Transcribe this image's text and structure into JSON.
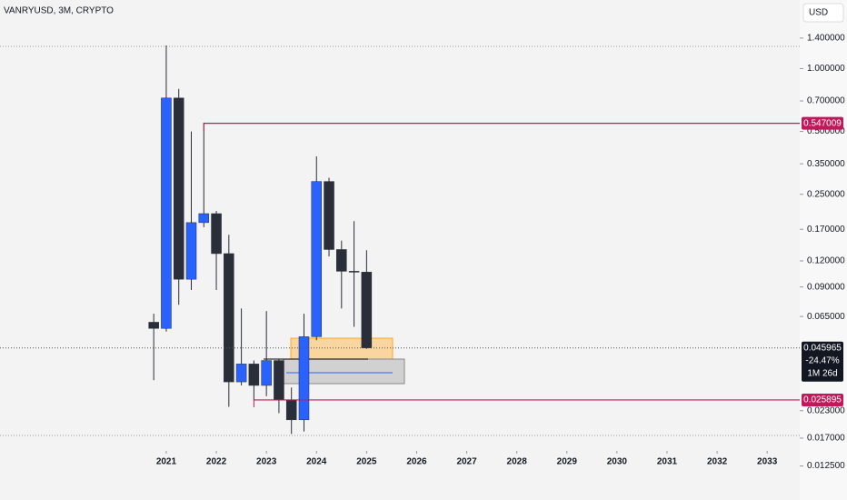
{
  "chart_data": {
    "type": "candlestick",
    "title": "VANRYUSD, 3M, CRYPTO",
    "currency": "USD",
    "log_scale": true,
    "x": [
      2020.75,
      2021,
      2021.25,
      2021.5,
      2021.75,
      2022,
      2022.25,
      2022.5,
      2022.75,
      2023,
      2023.25,
      2023.5,
      2023.75,
      2024,
      2024.25,
      2024.5,
      2024.75,
      2025
    ],
    "open": [
      0.061,
      0.057,
      0.723,
      0.098,
      0.183,
      0.202,
      0.13,
      0.0316,
      0.0385,
      0.0304,
      0.04,
      0.0259,
      0.0208,
      0.052,
      0.288,
      0.136,
      0.107,
      0.106
    ],
    "high": [
      0.067,
      1.29,
      0.8,
      0.5,
      0.551,
      0.208,
      0.16,
      0.071,
      0.04,
      0.069,
      0.0405,
      0.0297,
      0.067,
      0.38,
      0.3,
      0.15,
      0.186,
      0.135
    ],
    "low": [
      0.0322,
      0.055,
      0.074,
      0.087,
      0.174,
      0.087,
      0.024,
      0.0304,
      0.0259,
      0.027,
      0.0224,
      0.0178,
      0.0183,
      0.05,
      0.126,
      0.071,
      0.058,
      0.0455
    ],
    "close": [
      0.057,
      0.723,
      0.098,
      0.183,
      0.202,
      0.13,
      0.0316,
      0.0385,
      0.0304,
      0.04,
      0.0259,
      0.0208,
      0.052,
      0.288,
      0.136,
      0.107,
      0.106,
      0.045965
    ],
    "up_color": "#2962ff",
    "down_color": "#2a2e39",
    "xlim": [
      2017.68,
      2033.65
    ],
    "xticks": [
      2021,
      2022,
      2023,
      2024,
      2025,
      2026,
      2027,
      2028,
      2029,
      2030,
      2031,
      2032,
      2033
    ],
    "ylim": [
      0.0105,
      2.13
    ],
    "yticks": [
      {
        "value": 1.4,
        "label": "1.400000"
      },
      {
        "value": 1.0,
        "label": "1.000000"
      },
      {
        "value": 0.7,
        "label": "0.700000"
      },
      {
        "value": 0.5,
        "label": "0.500000"
      },
      {
        "value": 0.35,
        "label": "0.350000"
      },
      {
        "value": 0.25,
        "label": "0.250000"
      },
      {
        "value": 0.17,
        "label": "0.170000"
      },
      {
        "value": 0.12,
        "label": "0.120000"
      },
      {
        "value": 0.09,
        "label": "0.090000"
      },
      {
        "value": 0.065,
        "label": "0.065000"
      },
      {
        "value": 0.023,
        "label": "0.023000"
      },
      {
        "value": 0.017,
        "label": "0.017000"
      },
      {
        "value": 0.0125,
        "label": "0.012500"
      }
    ],
    "levels": [
      {
        "value": 0.547009,
        "start": 2021.75,
        "color": "#c2185b"
      },
      {
        "value": 0.025895,
        "start": 2022.75,
        "color": "#c2185b"
      }
    ],
    "last_price": 0.045965,
    "change_label": "-24.47%",
    "countdown": "1M 26d",
    "last_color": "#131722"
  }
}
